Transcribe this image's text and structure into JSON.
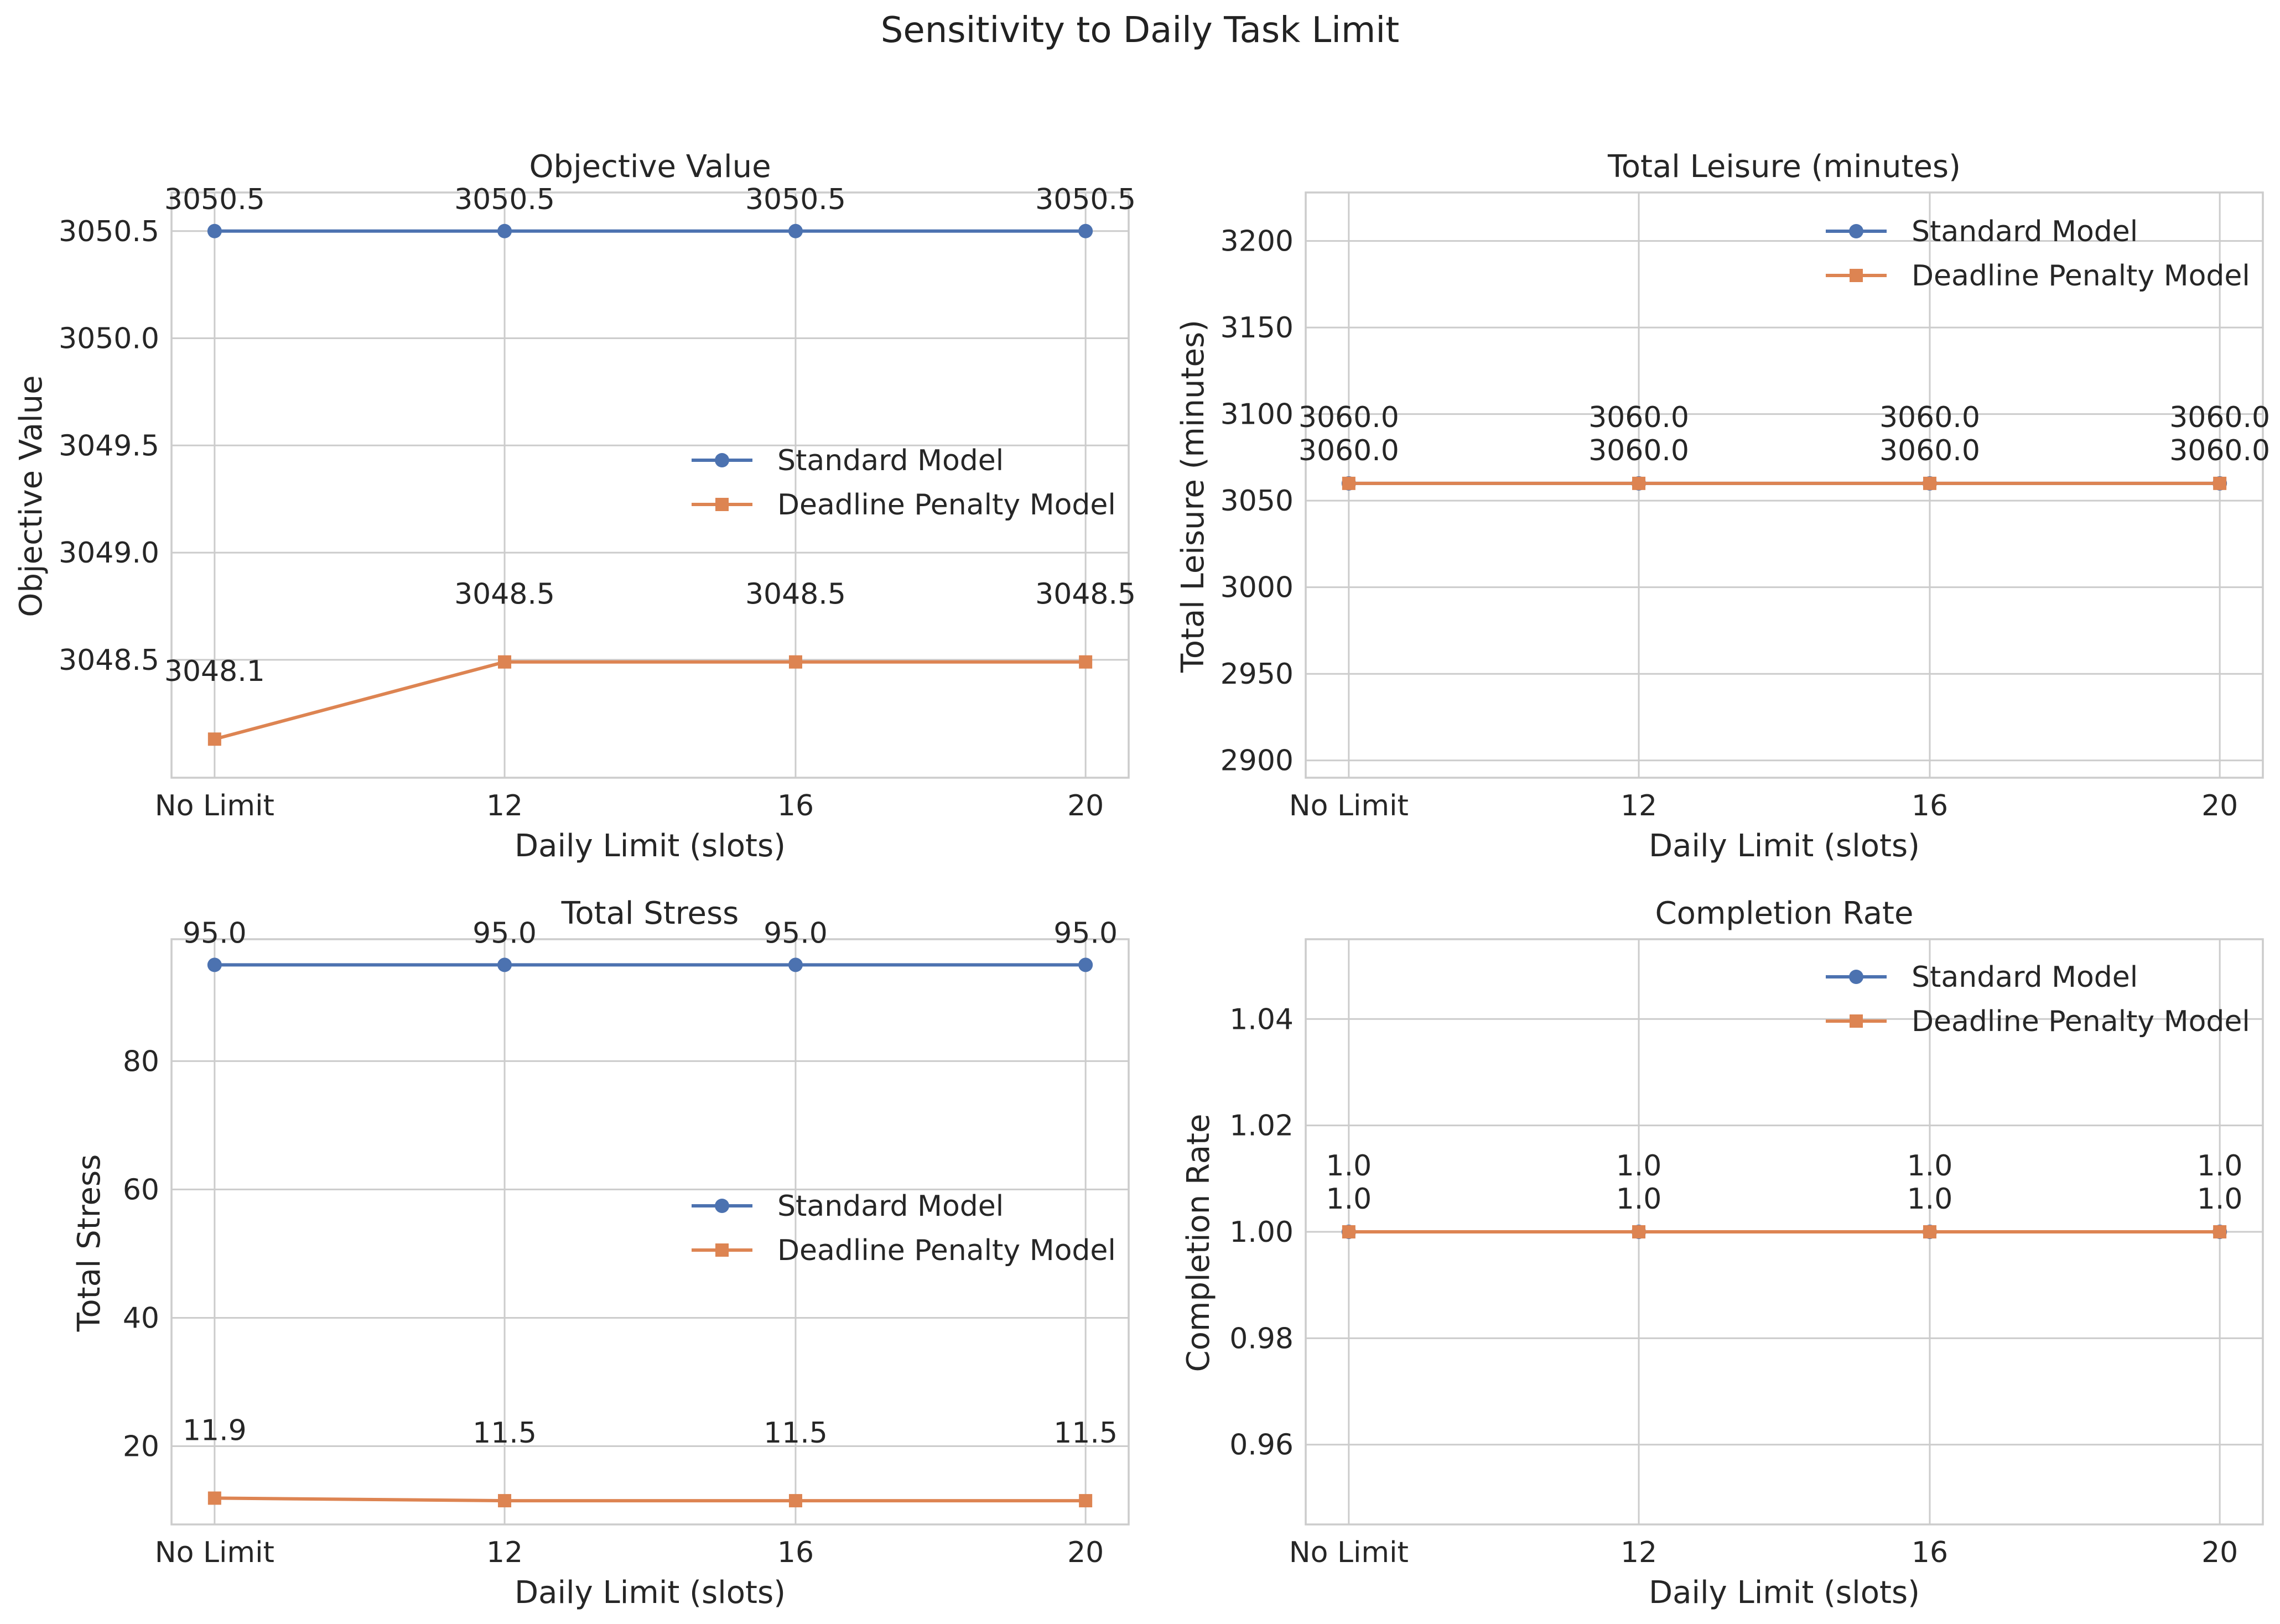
{
  "suptitle": "Sensitivity to Daily Task Limit",
  "colors": {
    "standard": "#4c72b0",
    "penalty": "#dd8452",
    "grid": "#cccccc",
    "text": "#262626"
  },
  "chart_data": [
    {
      "type": "line",
      "title": "Objective Value",
      "xlabel": "Daily Limit (slots)",
      "ylabel": "Objective Value",
      "categories": [
        "No Limit",
        "12",
        "16",
        "20"
      ],
      "ylim": [
        3047.95,
        3050.68
      ],
      "yticks": [
        "3048.5",
        "3049.0",
        "3049.5",
        "3050.0",
        "3050.5"
      ],
      "grid": true,
      "legend": "center-right",
      "series": [
        {
          "name": "Standard Model",
          "marker": "circle",
          "values": [
            3050.5,
            3050.5,
            3050.5,
            3050.5
          ],
          "labels": [
            "3050.5",
            "3050.5",
            "3050.5",
            "3050.5"
          ]
        },
        {
          "name": "Deadline Penalty Model",
          "marker": "square",
          "values": [
            3048.13,
            3048.49,
            3048.49,
            3048.49
          ],
          "labels": [
            "3048.1",
            "3048.5",
            "3048.5",
            "3048.5"
          ]
        }
      ]
    },
    {
      "type": "line",
      "title": "Total Leisure (minutes)",
      "xlabel": "Daily Limit (slots)",
      "ylabel": "Total Leisure (minutes)",
      "categories": [
        "No Limit",
        "12",
        "16",
        "20"
      ],
      "ylim": [
        2890,
        3228
      ],
      "yticks": [
        "2900",
        "2950",
        "3000",
        "3050",
        "3100",
        "3150",
        "3200"
      ],
      "grid": true,
      "legend": "top-right",
      "series": [
        {
          "name": "Standard Model",
          "marker": "circle",
          "values": [
            3060,
            3060,
            3060,
            3060
          ],
          "labels": [
            "3060.0",
            "3060.0",
            "3060.0",
            "3060.0"
          ]
        },
        {
          "name": "Deadline Penalty Model",
          "marker": "square",
          "values": [
            3060,
            3060,
            3060,
            3060
          ],
          "labels": [
            "3060.0",
            "3060.0",
            "3060.0",
            "3060.0"
          ]
        }
      ]
    },
    {
      "type": "line",
      "title": "Total Stress",
      "xlabel": "Daily Limit (slots)",
      "ylabel": "Total Stress",
      "categories": [
        "No Limit",
        "12",
        "16",
        "20"
      ],
      "ylim": [
        7.8,
        99.0
      ],
      "yticks": [
        "20",
        "40",
        "60",
        "80"
      ],
      "grid": true,
      "legend": "center-right",
      "series": [
        {
          "name": "Standard Model",
          "marker": "circle",
          "values": [
            95.0,
            95.0,
            95.0,
            95.0
          ],
          "labels": [
            "95.0",
            "95.0",
            "95.0",
            "95.0"
          ]
        },
        {
          "name": "Deadline Penalty Model",
          "marker": "square",
          "values": [
            11.9,
            11.5,
            11.5,
            11.5
          ],
          "labels": [
            "11.9",
            "11.5",
            "11.5",
            "11.5"
          ]
        }
      ]
    },
    {
      "type": "line",
      "title": "Completion Rate",
      "xlabel": "Daily Limit (slots)",
      "ylabel": "Completion Rate",
      "categories": [
        "No Limit",
        "12",
        "16",
        "20"
      ],
      "ylim": [
        0.945,
        1.055
      ],
      "yticks": [
        "0.96",
        "0.98",
        "1.00",
        "1.02",
        "1.04"
      ],
      "grid": true,
      "legend": "top-right",
      "series": [
        {
          "name": "Standard Model",
          "marker": "circle",
          "values": [
            1.0,
            1.0,
            1.0,
            1.0
          ],
          "labels": [
            "1.0",
            "1.0",
            "1.0",
            "1.0"
          ]
        },
        {
          "name": "Deadline Penalty Model",
          "marker": "square",
          "values": [
            1.0,
            1.0,
            1.0,
            1.0
          ],
          "labels": [
            "1.0",
            "1.0",
            "1.0",
            "1.0"
          ]
        }
      ]
    }
  ]
}
